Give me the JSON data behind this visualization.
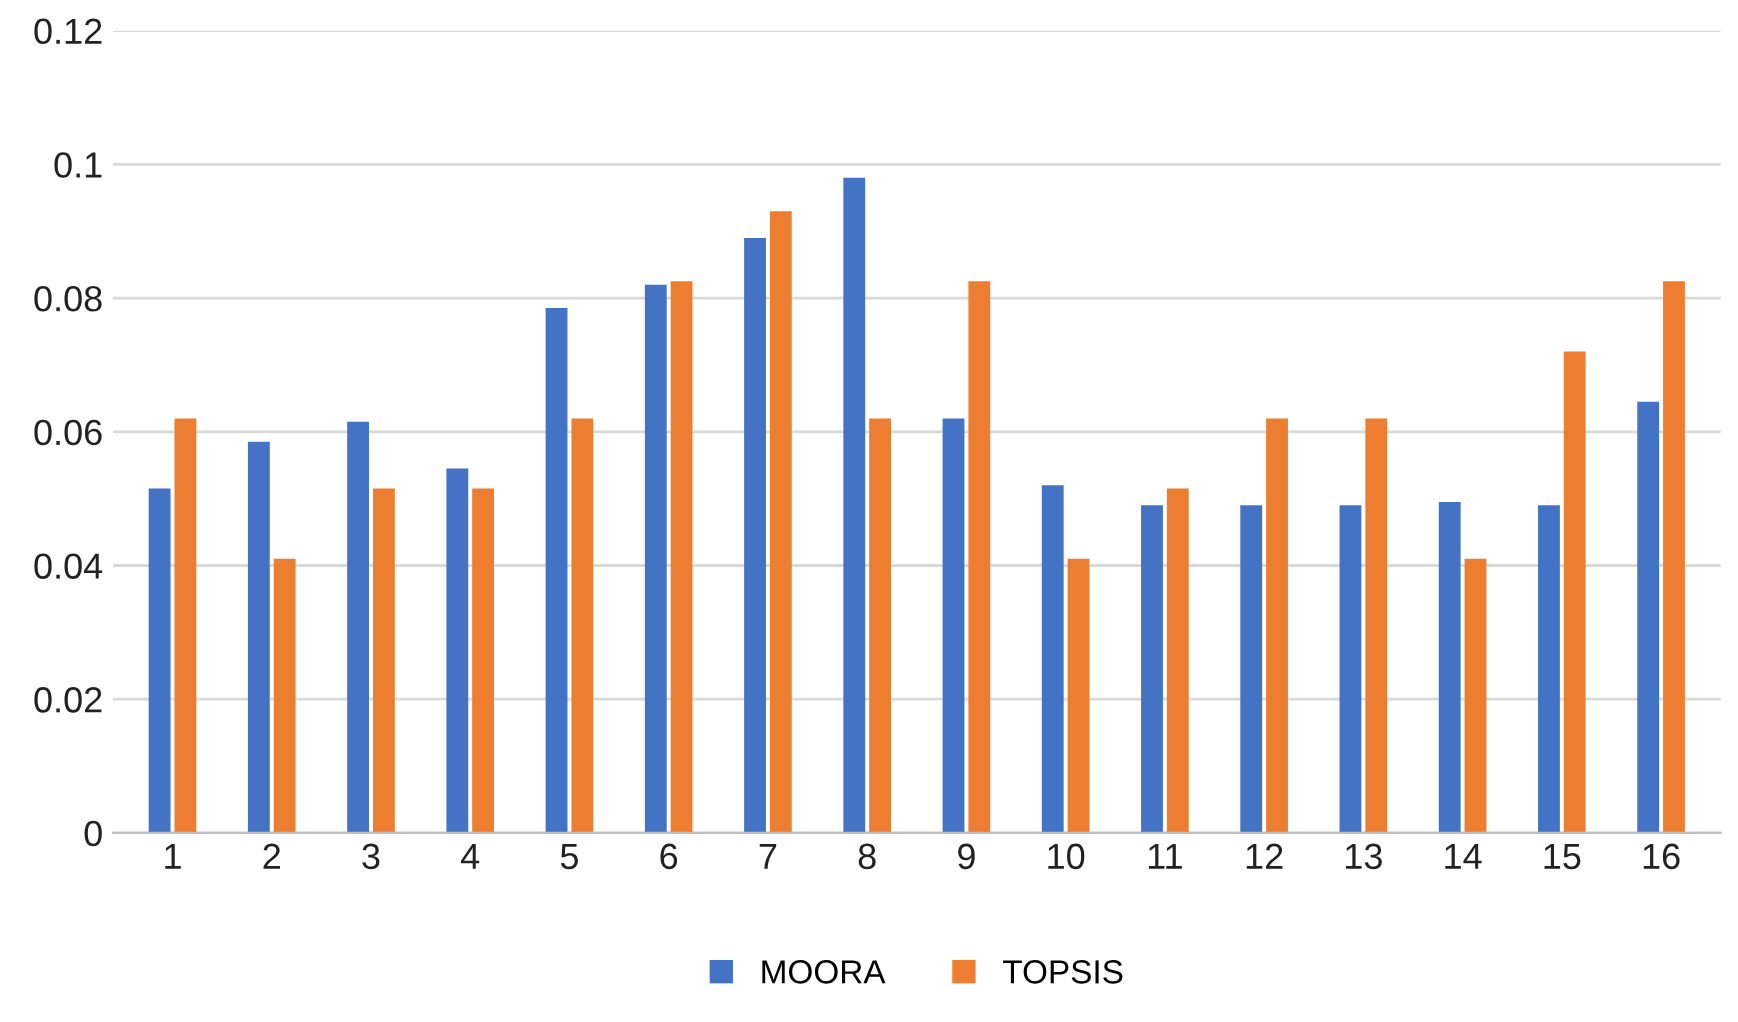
{
  "chart_data": {
    "type": "bar",
    "categories": [
      "1",
      "2",
      "3",
      "4",
      "5",
      "6",
      "7",
      "8",
      "9",
      "10",
      "11",
      "12",
      "13",
      "14",
      "15",
      "16"
    ],
    "series": [
      {
        "name": "MOORA",
        "color": "#4472c4",
        "values": [
          0.0515,
          0.0585,
          0.0615,
          0.0545,
          0.0785,
          0.082,
          0.089,
          0.098,
          0.062,
          0.052,
          0.049,
          0.049,
          0.049,
          0.0495,
          0.049,
          0.0645
        ]
      },
      {
        "name": "TOPSIS",
        "color": "#ed7d31",
        "values": [
          0.062,
          0.041,
          0.0515,
          0.0515,
          0.062,
          0.0825,
          0.093,
          0.062,
          0.0825,
          0.041,
          0.0515,
          0.062,
          0.062,
          0.041,
          0.072,
          0.0825
        ]
      }
    ],
    "ylim": [
      0,
      0.12
    ],
    "yticks": [
      0,
      0.02,
      0.04,
      0.06,
      0.08,
      0.1,
      0.12
    ],
    "grid": "y",
    "legend": "bottom"
  }
}
